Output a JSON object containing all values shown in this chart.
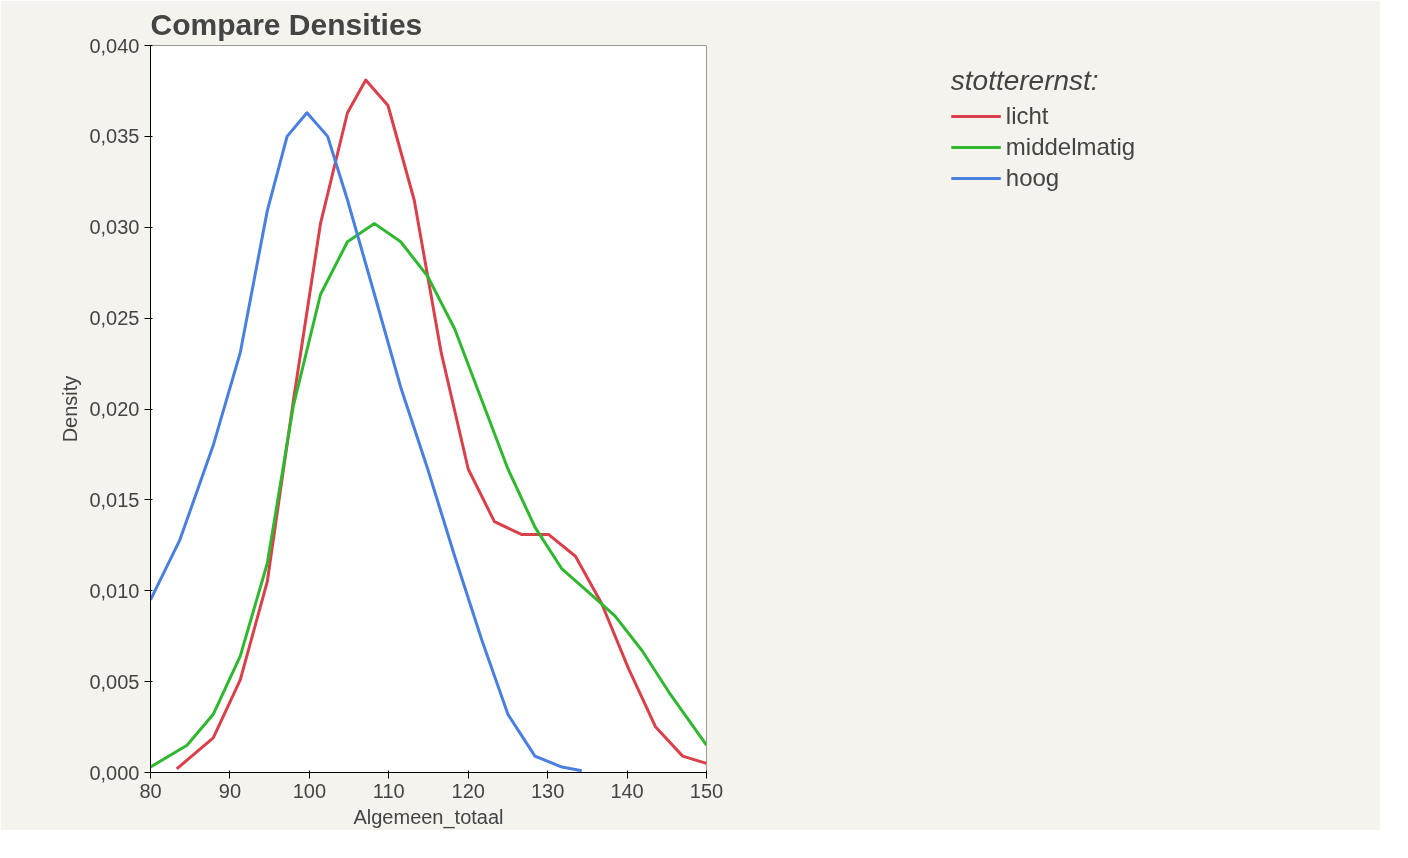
{
  "chart_data": {
    "type": "line",
    "title": "Compare Densities",
    "xlabel": "Algemeen_totaal",
    "ylabel": "Density",
    "legend_title": "stotterernst:",
    "legend": "top right",
    "grid": false,
    "marker": "none",
    "line_style": "solid",
    "xlim": [
      80,
      150
    ],
    "xticks": [
      80,
      90,
      100,
      110,
      120,
      130,
      140,
      150
    ],
    "ylim": [
      0,
      0.04
    ],
    "yticks": [
      {
        "value": 0,
        "label": "0,000"
      },
      {
        "value": 0.005,
        "label": "0,005"
      },
      {
        "value": 0.01,
        "label": "0,010"
      },
      {
        "value": 0.015,
        "label": "0,015"
      },
      {
        "value": 0.02,
        "label": "0,020"
      },
      {
        "value": 0.025,
        "label": "0,025"
      },
      {
        "value": 0.03,
        "label": "0,030"
      },
      {
        "value": 0.035,
        "label": "0,035"
      },
      {
        "value": 0.04,
        "label": "0,040"
      }
    ],
    "series": [
      {
        "name": "licht",
        "color": "#d9404a",
        "x": [
          83.3,
          87.9,
          91.3,
          94.7,
          98.0,
          101.4,
          104.8,
          107.1,
          109.9,
          113.2,
          116.6,
          120.0,
          123.3,
          126.7,
          130.1,
          133.5,
          136.8,
          140.2,
          143.6,
          147.0,
          150
        ],
        "values": [
          0.0002,
          0.0019,
          0.0051,
          0.0105,
          0.0205,
          0.0302,
          0.0363,
          0.0381,
          0.0367,
          0.0315,
          0.0231,
          0.0167,
          0.0138,
          0.0131,
          0.0131,
          0.0119,
          0.0093,
          0.0057,
          0.0025,
          0.0009,
          0.0005
        ]
      },
      {
        "name": "middelmatig",
        "color": "#2fb82f",
        "x": [
          80,
          84.6,
          87.9,
          91.3,
          94.7,
          98.0,
          101.4,
          104.8,
          108.2,
          111.5,
          114.9,
          118.3,
          121.7,
          125.0,
          128.4,
          131.8,
          135.2,
          138.5,
          141.9,
          145.3,
          150
        ],
        "values": [
          0.0003,
          0.0015,
          0.0032,
          0.0064,
          0.0115,
          0.0202,
          0.0263,
          0.0292,
          0.0302,
          0.0292,
          0.0273,
          0.0244,
          0.0205,
          0.0167,
          0.0135,
          0.0112,
          0.0099,
          0.0086,
          0.0067,
          0.0044,
          0.0015
        ]
      },
      {
        "name": "hoog",
        "color": "#4a7fe0",
        "x": [
          80,
          83.7,
          87.9,
          91.3,
          94.7,
          97.2,
          99.7,
          102.3,
          104.8,
          108.2,
          111.5,
          114.9,
          118.3,
          121.7,
          125.0,
          128.4,
          131.8,
          134.3
        ],
        "values": [
          0.0095,
          0.0128,
          0.018,
          0.0231,
          0.0309,
          0.035,
          0.0363,
          0.035,
          0.0315,
          0.0263,
          0.0212,
          0.0167,
          0.0119,
          0.0073,
          0.0032,
          0.0009,
          0.0003,
          0.0001
        ]
      }
    ]
  }
}
